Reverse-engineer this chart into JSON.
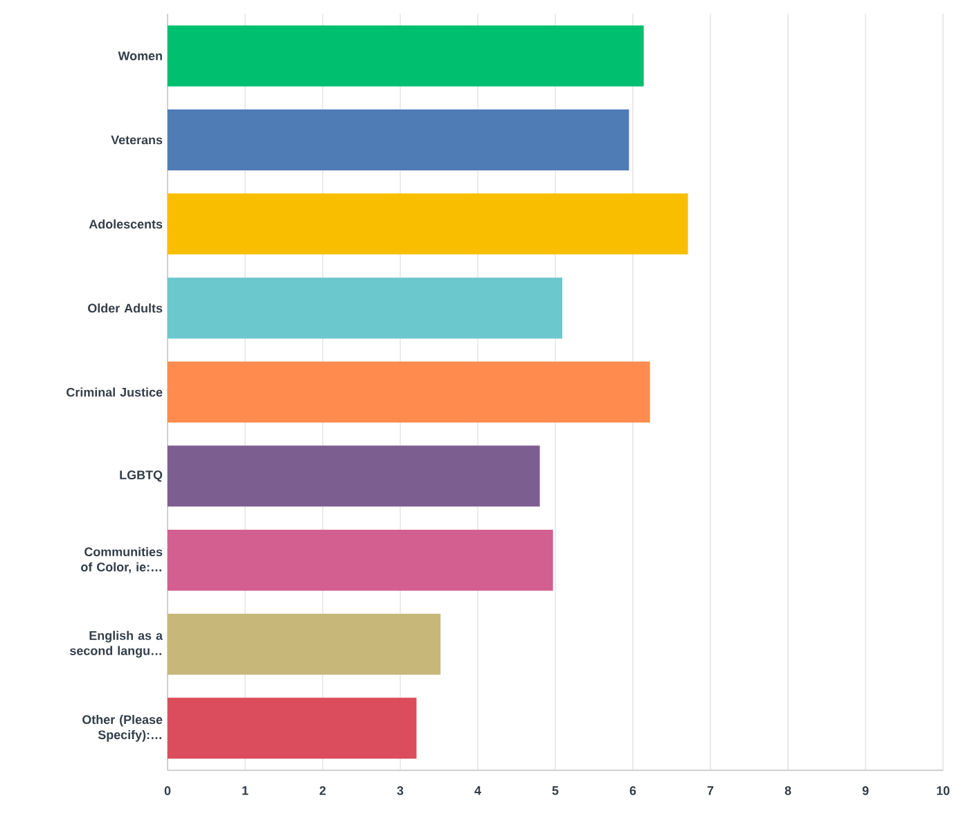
{
  "chart_data": {
    "type": "bar",
    "orientation": "horizontal",
    "categories": [
      "Women",
      "Veterans",
      "Adolescents",
      "Older Adults",
      "Criminal Justice",
      "LGBTQ",
      "Communities of Color, ie:…",
      "English as a second langu…",
      "Other (Please Specify):…"
    ],
    "values": [
      6.14,
      5.95,
      6.71,
      5.09,
      6.22,
      4.8,
      4.97,
      3.52,
      3.21
    ],
    "colors": [
      "#00bf6f",
      "#507cb6",
      "#f9be00",
      "#6bc8cd",
      "#ff8b4f",
      "#7d5e90",
      "#d25f90",
      "#c7b879",
      "#db4d5c"
    ],
    "xlim": [
      0,
      10
    ],
    "xticks": [
      0,
      1,
      2,
      3,
      4,
      5,
      6,
      7,
      8,
      9,
      10
    ],
    "grid": "x"
  }
}
